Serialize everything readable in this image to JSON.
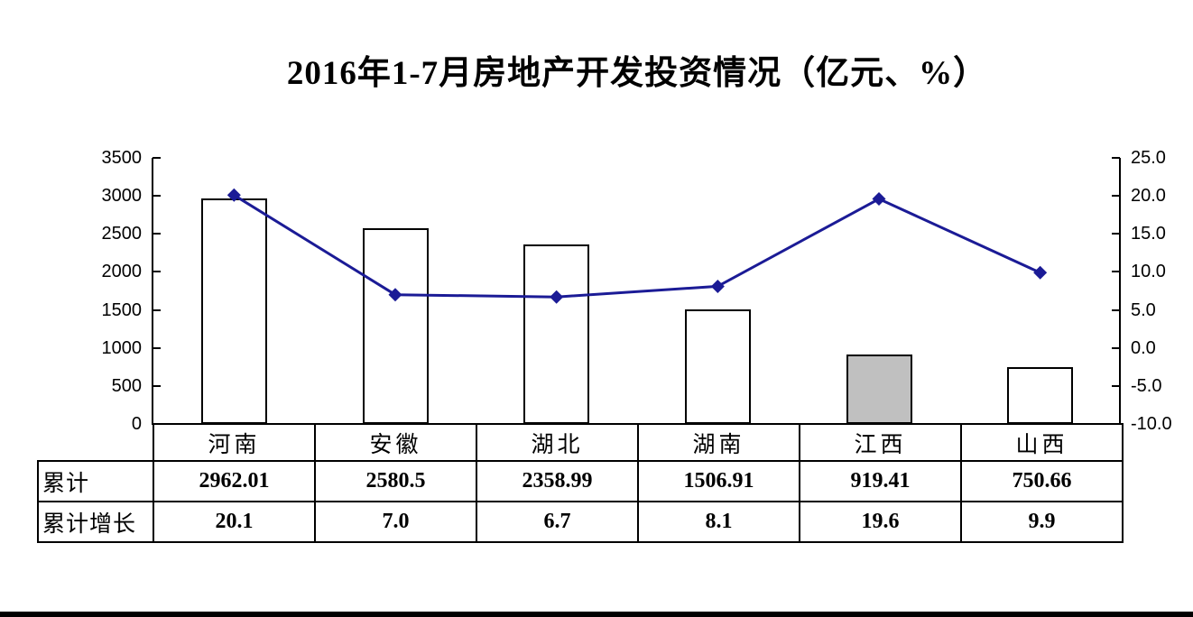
{
  "chart_data": {
    "type": "bar+line",
    "title": "2016年1-7月房地产开发投资情况（亿元、%）",
    "categories": [
      "河南",
      "安徽",
      "湖北",
      "湖南",
      "江西",
      "山西"
    ],
    "series": [
      {
        "name": "累计",
        "type": "bar",
        "axis": "left",
        "values": [
          2962.01,
          2580.5,
          2358.99,
          1506.91,
          919.41,
          750.66
        ],
        "labels": [
          "2962.01",
          "2580.5",
          "2358.99",
          "1506.91",
          "919.41",
          "750.66"
        ],
        "bar_fills": [
          "#ffffff",
          "#ffffff",
          "#ffffff",
          "#ffffff",
          "#c0c0c0",
          "#ffffff"
        ],
        "bar_border": "#000000"
      },
      {
        "name": "累计增长",
        "type": "line",
        "axis": "right",
        "values": [
          20.1,
          7.0,
          6.7,
          8.1,
          19.6,
          9.9
        ],
        "labels": [
          "20.1",
          "7.0",
          "6.7",
          "8.1",
          "19.6",
          "9.9"
        ],
        "color": "#1b1b96",
        "marker": "diamond"
      }
    ],
    "left_axis": {
      "min": 0,
      "max": 3500,
      "step": 500,
      "tick_labels": [
        "3500",
        "3000",
        "2500",
        "2000",
        "1500",
        "1000",
        "500",
        "0"
      ]
    },
    "right_axis": {
      "min": -10,
      "max": 25,
      "step": 5,
      "tick_labels": [
        "25.0",
        "20.0",
        "15.0",
        "10.0",
        "5.0",
        "0.0",
        "-5.0",
        "-10.0"
      ]
    },
    "legend": "none",
    "grid": false
  }
}
